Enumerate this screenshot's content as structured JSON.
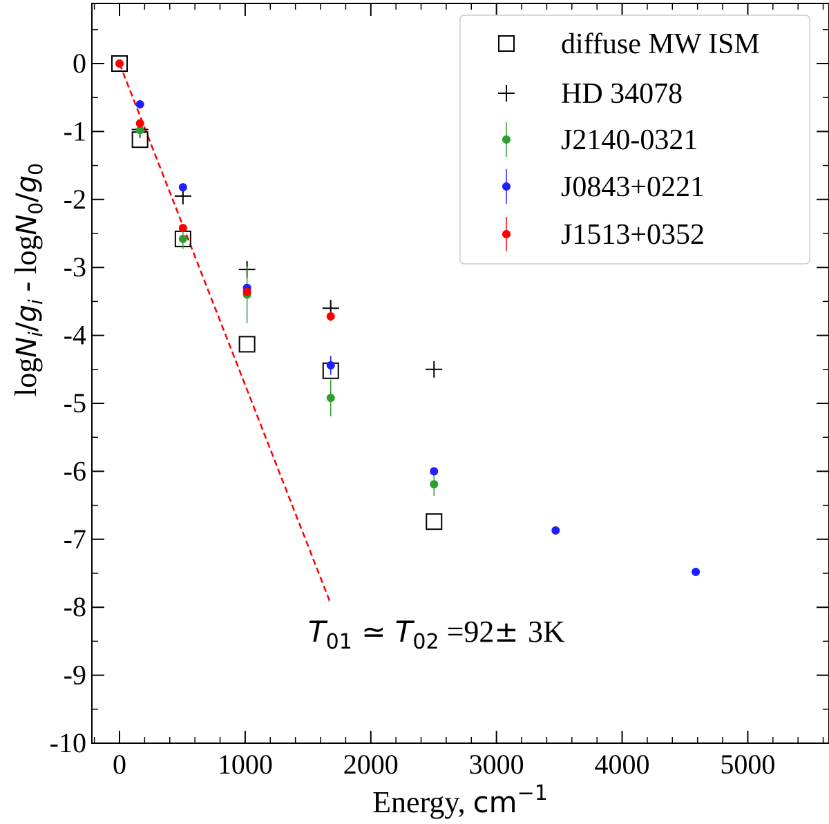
{
  "chart_data": {
    "type": "scatter",
    "title": "",
    "xlabel": {
      "prefix": "Energy, ",
      "unit": "cm",
      "exp": "−1"
    },
    "ylabel": {
      "parts": [
        "log",
        "N",
        "i",
        "/",
        "g",
        "i",
        " - log",
        "N",
        "0",
        "/",
        "g",
        "0"
      ]
    },
    "xlim": [
      -40,
      5600
    ],
    "ylim": [
      -10,
      0.85
    ],
    "xticks": [
      0,
      1000,
      2000,
      3000,
      4000,
      5000
    ],
    "xtick_labels": [
      "0",
      "1000",
      "2000",
      "3000",
      "4000",
      "5000"
    ],
    "yticks": [
      0,
      -1,
      -2,
      -3,
      -4,
      -5,
      -6,
      -7,
      -8,
      -9,
      -10
    ],
    "ytick_labels": [
      "0",
      "-1",
      "-2",
      "-3",
      "-4",
      "-5",
      "-6",
      "-7",
      "-8",
      "-9",
      "-10"
    ],
    "grid": false,
    "legend_position": "top-right",
    "series": [
      {
        "name": "diffuse MW ISM",
        "marker": "open-square",
        "color": "#000000",
        "points": [
          {
            "x": 0,
            "y": 0
          },
          {
            "x": 163,
            "y": -1.12
          },
          {
            "x": 505,
            "y": -2.58
          },
          {
            "x": 1015,
            "y": -4.13
          },
          {
            "x": 1681,
            "y": -4.52
          },
          {
            "x": 2503,
            "y": -6.74
          }
        ]
      },
      {
        "name": "HD 34078",
        "marker": "plus",
        "color": "#000000",
        "points": [
          {
            "x": 163,
            "y": -0.97
          },
          {
            "x": 505,
            "y": -1.95
          },
          {
            "x": 1015,
            "y": -3.03
          },
          {
            "x": 1681,
            "y": -3.6
          },
          {
            "x": 2503,
            "y": -4.5
          }
        ]
      },
      {
        "name": "J2140-0321",
        "marker": "dot",
        "color": "#2ca02c",
        "points": [
          {
            "x": 163,
            "y": -0.98,
            "err": 0.1
          },
          {
            "x": 505,
            "y": -2.58,
            "err": 0.15
          },
          {
            "x": 1015,
            "y": -3.4,
            "err": 0.42
          },
          {
            "x": 1681,
            "y": -4.92,
            "err": 0.27
          },
          {
            "x": 2503,
            "y": -6.19,
            "err": 0.17
          }
        ]
      },
      {
        "name": "J0843+0221",
        "marker": "dot",
        "color": "#1f1fff",
        "points": [
          {
            "x": 163,
            "y": -0.6,
            "err": 0
          },
          {
            "x": 505,
            "y": -1.82,
            "err": 0
          },
          {
            "x": 1015,
            "y": -3.3,
            "err": 0
          },
          {
            "x": 1681,
            "y": -4.44,
            "err": 0.14
          },
          {
            "x": 2503,
            "y": -6.0,
            "err": 0
          },
          {
            "x": 3471,
            "y": -6.87,
            "err": 0
          },
          {
            "x": 4586,
            "y": -7.48,
            "err": 0
          }
        ]
      },
      {
        "name": "J1513+0352",
        "marker": "dot",
        "color": "#ff0000",
        "points": [
          {
            "x": 0,
            "y": 0,
            "err": 0
          },
          {
            "x": 163,
            "y": -0.88,
            "err": 0.05
          },
          {
            "x": 505,
            "y": -2.42,
            "err": 0
          },
          {
            "x": 1015,
            "y": -3.36,
            "err": 0.04
          },
          {
            "x": 1681,
            "y": -3.72,
            "err": 0.07
          }
        ]
      }
    ],
    "fit_line": {
      "color": "#ff0000",
      "style": "dashed",
      "x": [
        0,
        1681
      ],
      "y": [
        0,
        -7.95
      ]
    },
    "annotation": {
      "T": "T",
      "sub1": "01",
      "approx": "≃",
      "sub2": "02",
      "value": "=92",
      "pm": "±",
      "err": "3K",
      "x": 1470,
      "y": -8.35
    }
  }
}
